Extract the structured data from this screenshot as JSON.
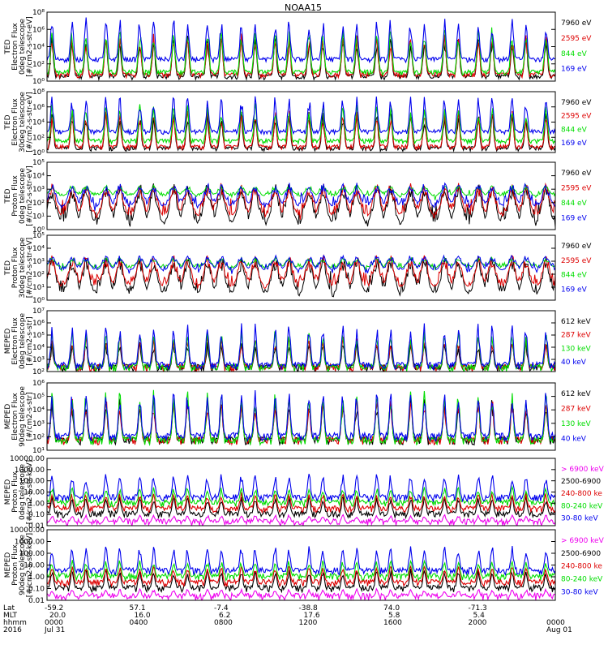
{
  "chart_data": {
    "type": "line",
    "title": "NOAA15",
    "panels": [
      {
        "instrument": "TED",
        "ylabel_lines": [
          "TED",
          "Electron Flux",
          "0deg telescope",
          "[#/cm2-s-str-eV]"
        ],
        "ylog": true,
        "ylim": [
          1,
          100000000
        ],
        "ticks": [
          {
            "value": 1,
            "label": "10⁰"
          },
          {
            "value": 100,
            "label": "10²"
          },
          {
            "value": 10000,
            "label": "10⁴"
          },
          {
            "value": 1000000,
            "label": "10⁶"
          },
          {
            "value": 100000000,
            "label": "10⁸"
          }
        ],
        "series": [
          {
            "name": "7960 eV",
            "color": "#000000",
            "base": 3,
            "peak": 300000,
            "dense": false
          },
          {
            "name": "2595 eV",
            "color": "#dd0000",
            "base": 5,
            "peak": 500000,
            "dense": false
          },
          {
            "name": "844 eV",
            "color": "#00dd00",
            "base": 10,
            "peak": 3000000,
            "dense": false
          },
          {
            "name": "169 eV",
            "color": "#0000ee",
            "base": 300,
            "peak": 30000000,
            "dense": false
          }
        ]
      },
      {
        "instrument": "TED",
        "ylabel_lines": [
          "TED",
          "Electron Flux",
          "30deg telescope",
          "[#/cm2-s-str-eV]"
        ],
        "ylog": true,
        "ylim": [
          1,
          100000000
        ],
        "ticks": [
          {
            "value": 1,
            "label": "10⁰"
          },
          {
            "value": 100,
            "label": "10²"
          },
          {
            "value": 10000,
            "label": "10⁴"
          },
          {
            "value": 1000000,
            "label": "10⁶"
          },
          {
            "value": 100000000,
            "label": "10⁸"
          }
        ],
        "series": [
          {
            "name": "7960 eV",
            "color": "#000000",
            "base": 3,
            "peak": 300000,
            "dense": false
          },
          {
            "name": "2595 eV",
            "color": "#dd0000",
            "base": 5,
            "peak": 500000,
            "dense": false
          },
          {
            "name": "844 eV",
            "color": "#00dd00",
            "base": 30,
            "peak": 3000000,
            "dense": false
          },
          {
            "name": "169 eV",
            "color": "#0000ee",
            "base": 500,
            "peak": 30000000,
            "dense": false
          }
        ]
      },
      {
        "instrument": "TED",
        "ylabel_lines": [
          "TED",
          "Proton Flux",
          "0deg telescope",
          "[#/cm2-s-str-eV]"
        ],
        "ylog": true,
        "ylim": [
          1,
          100000
        ],
        "ticks": [
          {
            "value": 1,
            "label": "10⁰"
          },
          {
            "value": 10,
            "label": "10¹"
          },
          {
            "value": 100,
            "label": "10²"
          },
          {
            "value": 1000,
            "label": "10³"
          },
          {
            "value": 10000,
            "label": "10⁴"
          },
          {
            "value": 100000,
            "label": "10⁵"
          }
        ],
        "series": [
          {
            "name": "7960 eV",
            "color": "#000000",
            "base": 3,
            "peak": 3000,
            "dense": true
          },
          {
            "name": "2595 eV",
            "color": "#dd0000",
            "base": 10,
            "peak": 3000,
            "dense": true
          },
          {
            "name": "844 eV",
            "color": "#00dd00",
            "base": 300,
            "peak": 2000,
            "dense": true
          },
          {
            "name": "169 eV",
            "color": "#0000ee",
            "base": 50,
            "peak": 3000,
            "dense": true
          }
        ]
      },
      {
        "instrument": "TED",
        "ylabel_lines": [
          "TED",
          "Proton Flux",
          "30deg telescope",
          "[#/cm2-s-str-eV]"
        ],
        "ylog": true,
        "ylim": [
          1,
          100000
        ],
        "ticks": [
          {
            "value": 1,
            "label": "10⁰"
          },
          {
            "value": 10,
            "label": "10¹"
          },
          {
            "value": 100,
            "label": "10²"
          },
          {
            "value": 1000,
            "label": "10³"
          },
          {
            "value": 10000,
            "label": "10⁴"
          },
          {
            "value": 100000,
            "label": "10⁵"
          }
        ],
        "series": [
          {
            "name": "7960 eV",
            "color": "#000000",
            "base": 3,
            "peak": 3000,
            "dense": true
          },
          {
            "name": "2595 eV",
            "color": "#dd0000",
            "base": 10,
            "peak": 3000,
            "dense": true
          },
          {
            "name": "844 eV",
            "color": "#00dd00",
            "base": 300,
            "peak": 2000,
            "dense": true
          },
          {
            "name": "169 eV",
            "color": "#0000ee",
            "base": 200,
            "peak": 3000,
            "dense": true
          }
        ]
      },
      {
        "instrument": "MEPED",
        "ylabel_lines": [
          "MEPED",
          "Electron Flux",
          "0deg telescope",
          "[#/cm2-s-str]"
        ],
        "ylog": true,
        "ylim": [
          100,
          10000000
        ],
        "ticks": [
          {
            "value": 100,
            "label": "10²"
          },
          {
            "value": 1000,
            "label": "10³"
          },
          {
            "value": 10000,
            "label": "10⁴"
          },
          {
            "value": 100000,
            "label": "10⁵"
          },
          {
            "value": 1000000,
            "label": "10⁶"
          },
          {
            "value": 10000000,
            "label": "10⁷"
          }
        ],
        "series": [
          {
            "name": "612 keV",
            "color": "#000000",
            "base": 200,
            "peak": 30000,
            "dense": false
          },
          {
            "name": "287 keV",
            "color": "#dd0000",
            "base": 200,
            "peak": 100000,
            "dense": false
          },
          {
            "name": "130 keV",
            "color": "#00dd00",
            "base": 200,
            "peak": 300000,
            "dense": false
          },
          {
            "name": "40 keV",
            "color": "#0000ee",
            "base": 300,
            "peak": 1000000,
            "dense": false
          }
        ]
      },
      {
        "instrument": "MEPED",
        "ylabel_lines": [
          "MEPED",
          "Electron Flux",
          "90deg telescope",
          "[#/cm2-s-str]"
        ],
        "ylog": true,
        "ylim": [
          10,
          1000000
        ],
        "ticks": [
          {
            "value": 10,
            "label": "10¹"
          },
          {
            "value": 100,
            "label": "10²"
          },
          {
            "value": 1000,
            "label": "10³"
          },
          {
            "value": 10000,
            "label": "10⁴"
          },
          {
            "value": 100000,
            "label": "10⁵"
          },
          {
            "value": 1000000,
            "label": "10⁶"
          }
        ],
        "series": [
          {
            "name": "612 keV",
            "color": "#000000",
            "base": 50,
            "peak": 100000,
            "dense": false
          },
          {
            "name": "287 keV",
            "color": "#dd0000",
            "base": 50,
            "peak": 100000,
            "dense": false
          },
          {
            "name": "130 keV",
            "color": "#00dd00",
            "base": 50,
            "peak": 300000,
            "dense": false
          },
          {
            "name": "40 keV",
            "color": "#0000ee",
            "base": 100,
            "peak": 300000,
            "dense": false
          }
        ]
      },
      {
        "instrument": "MEPED",
        "ylabel_lines": [
          "MEPED",
          "Proton Flux",
          "0deg telescope",
          "[#/cm2-s-str-keV]"
        ],
        "ylog": true,
        "ylim": [
          0.01,
          10000
        ],
        "ticks": [
          {
            "value": 0.01,
            "label": "0.01"
          },
          {
            "value": 0.1,
            "label": "0.10"
          },
          {
            "value": 1,
            "label": "1.00"
          },
          {
            "value": 10,
            "label": "10.00"
          },
          {
            "value": 100,
            "label": "100.00"
          },
          {
            "value": 1000,
            "label": "1000.00"
          },
          {
            "value": 10000,
            "label": "10000.00"
          }
        ],
        "series": [
          {
            "name": "> 6900 keV",
            "color": "#ee00ee",
            "base": 0.02,
            "peak": 0.1,
            "dense": false
          },
          {
            "name": "2500-6900",
            "color": "#000000",
            "base": 0.1,
            "peak": 5,
            "dense": false
          },
          {
            "name": "240-800 ke",
            "color": "#dd0000",
            "base": 0.3,
            "peak": 10,
            "dense": false
          },
          {
            "name": "80-240 keV",
            "color": "#00dd00",
            "base": 1,
            "peak": 30,
            "dense": false
          },
          {
            "name": "30-80 keV",
            "color": "#0000ee",
            "base": 3,
            "peak": 500,
            "dense": false
          }
        ]
      },
      {
        "instrument": "MEPED",
        "ylabel_lines": [
          "MEPED",
          "Proton Flux",
          "90deg telescope",
          "[#/cm2-s-str-keV]"
        ],
        "ylog": true,
        "ylim": [
          0.01,
          10000
        ],
        "ticks": [
          {
            "value": 0.01,
            "label": "0.01"
          },
          {
            "value": 0.1,
            "label": "0.10"
          },
          {
            "value": 1,
            "label": "1.00"
          },
          {
            "value": 10,
            "label": "10.00"
          },
          {
            "value": 100,
            "label": "100.00"
          },
          {
            "value": 1000,
            "label": "1000.00"
          },
          {
            "value": 10000,
            "label": "10000.00"
          }
        ],
        "series": [
          {
            "name": "> 6900 keV",
            "color": "#ee00ee",
            "base": 0.02,
            "peak": 0.1,
            "dense": false
          },
          {
            "name": "2500-6900",
            "color": "#000000",
            "base": 0.1,
            "peak": 5,
            "dense": false
          },
          {
            "name": "240-800 ke",
            "color": "#dd0000",
            "base": 0.3,
            "peak": 10,
            "dense": false
          },
          {
            "name": "80-240 keV",
            "color": "#00dd00",
            "base": 1,
            "peak": 30,
            "dense": false
          },
          {
            "name": "30-80 keV",
            "color": "#0000ee",
            "base": 3,
            "peak": 500,
            "dense": false
          }
        ]
      }
    ],
    "x_axis": {
      "time_range": [
        "0000",
        "2400"
      ],
      "row_labels": [
        "Lat",
        "MLT",
        "hhmm",
        "2016"
      ],
      "ticks": [
        {
          "hhmm": "0000",
          "lat": "-59.2",
          "mlt": "20.0",
          "date": "Jul 31"
        },
        {
          "hhmm": "0400",
          "lat": "57.1",
          "mlt": "16.0",
          "date": ""
        },
        {
          "hhmm": "0800",
          "lat": "-7.4",
          "mlt": "6.2",
          "date": ""
        },
        {
          "hhmm": "1200",
          "lat": "-38.8",
          "mlt": "17.6",
          "date": ""
        },
        {
          "hhmm": "1600",
          "lat": "74.0",
          "mlt": "5.8",
          "date": ""
        },
        {
          "hhmm": "2000",
          "lat": "-71.3",
          "mlt": "5.4",
          "date": ""
        },
        {
          "hhmm": "0000",
          "lat": "",
          "mlt": "",
          "date": "Aug 01"
        }
      ]
    }
  }
}
